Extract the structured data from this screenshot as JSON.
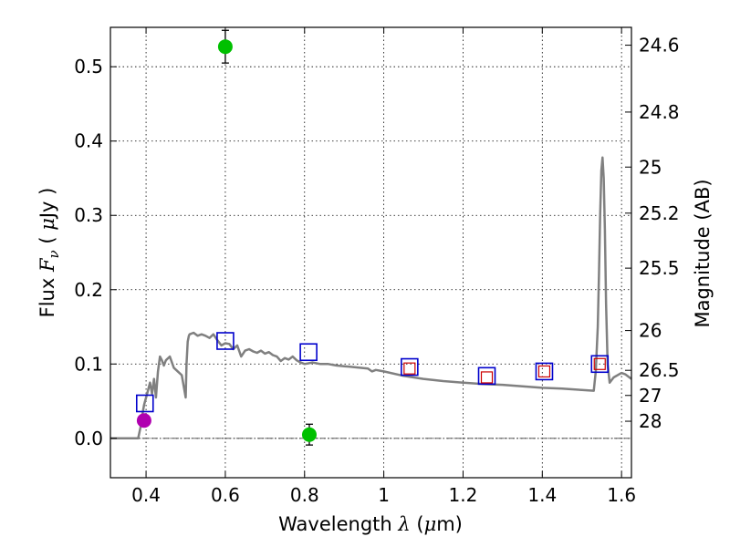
{
  "chart_data": {
    "type": "line",
    "x_axis": {
      "label_parts": [
        "Wavelength  ",
        "λ",
        " (",
        "μ",
        "m)"
      ],
      "range": [
        0.31,
        1.625
      ],
      "ticks": [
        0.4,
        0.6,
        0.8,
        1.0,
        1.2,
        1.4,
        1.6
      ],
      "tick_labels": [
        "0.4",
        "0.6",
        "0.8",
        "1",
        "1.2",
        "1.4",
        "1.6"
      ]
    },
    "y_axis_left": {
      "label_parts": [
        "Flux  ",
        "F",
        "ν",
        "  ( ",
        "μ",
        "Jy )"
      ],
      "range": [
        -0.053,
        0.553
      ],
      "ticks": [
        0.0,
        0.1,
        0.2,
        0.3,
        0.4,
        0.5
      ],
      "tick_labels": [
        "0.0",
        "0.1",
        "0.2",
        "0.3",
        "0.4",
        "0.5"
      ]
    },
    "y_axis_right": {
      "label": "Magnitude (AB)",
      "tick_labels": [
        "24.6",
        "24.8",
        "25",
        "25.2",
        "25.5",
        "26",
        "26.5",
        "27",
        "28"
      ],
      "tick_flux": [
        0.529,
        0.439,
        0.365,
        0.303,
        0.229,
        0.145,
        0.0915,
        0.0577,
        0.023
      ]
    },
    "grid": true,
    "legend": "none",
    "colors": {
      "sed_line": "#808080",
      "model_square": "#0000cc",
      "observed_square": "#cc0000",
      "green_point": "#00c000",
      "magenta_point": "#b000b0",
      "errorbar": "#000000"
    },
    "series": [
      {
        "kind": "sed-template",
        "x": [
          0.31,
          0.38,
          0.382,
          0.386,
          0.39,
          0.395,
          0.4,
          0.405,
          0.41,
          0.415,
          0.42,
          0.425,
          0.43,
          0.435,
          0.44,
          0.445,
          0.45,
          0.46,
          0.47,
          0.48,
          0.49,
          0.5,
          0.502,
          0.505,
          0.508,
          0.51,
          0.52,
          0.53,
          0.54,
          0.55,
          0.56,
          0.57,
          0.58,
          0.59,
          0.6,
          0.61,
          0.62,
          0.63,
          0.64,
          0.65,
          0.66,
          0.67,
          0.68,
          0.69,
          0.7,
          0.71,
          0.72,
          0.73,
          0.74,
          0.75,
          0.76,
          0.77,
          0.78,
          0.79,
          0.8,
          0.82,
          0.84,
          0.86,
          0.88,
          0.9,
          0.92,
          0.94,
          0.96,
          0.97,
          0.98,
          1.0,
          1.05,
          1.1,
          1.15,
          1.2,
          1.25,
          1.3,
          1.35,
          1.4,
          1.45,
          1.5,
          1.53,
          1.535,
          1.54,
          1.543,
          1.546,
          1.549,
          1.552,
          1.555,
          1.558,
          1.561,
          1.565,
          1.57,
          1.58,
          1.6,
          1.61,
          1.625
        ],
        "y": [
          0.0,
          0.0,
          0.005,
          0.015,
          0.03,
          0.045,
          0.055,
          0.065,
          0.075,
          0.06,
          0.08,
          0.055,
          0.09,
          0.11,
          0.105,
          0.098,
          0.105,
          0.11,
          0.095,
          0.09,
          0.085,
          0.055,
          0.1,
          0.13,
          0.138,
          0.14,
          0.142,
          0.138,
          0.14,
          0.138,
          0.135,
          0.14,
          0.132,
          0.125,
          0.128,
          0.127,
          0.12,
          0.125,
          0.11,
          0.118,
          0.12,
          0.117,
          0.115,
          0.118,
          0.114,
          0.116,
          0.112,
          0.11,
          0.104,
          0.108,
          0.106,
          0.11,
          0.105,
          0.102,
          0.1,
          0.102,
          0.1,
          0.1,
          0.098,
          0.097,
          0.096,
          0.095,
          0.094,
          0.09,
          0.092,
          0.09,
          0.084,
          0.08,
          0.077,
          0.075,
          0.073,
          0.072,
          0.07,
          0.068,
          0.067,
          0.065,
          0.064,
          0.09,
          0.15,
          0.22,
          0.3,
          0.36,
          0.378,
          0.35,
          0.28,
          0.18,
          0.1,
          0.075,
          0.082,
          0.088,
          0.086,
          0.08
        ]
      },
      {
        "kind": "model-photometry",
        "marker": "open-square",
        "x": [
          0.397,
          0.6,
          0.81,
          1.065,
          1.26,
          1.405,
          1.545
        ],
        "y": [
          0.047,
          0.131,
          0.116,
          0.096,
          0.084,
          0.09,
          0.1
        ]
      },
      {
        "kind": "observed-photometry",
        "marker": "open-square-small",
        "x": [
          1.065,
          1.26,
          1.405,
          1.545
        ],
        "y": [
          0.094,
          0.082,
          0.09,
          0.1
        ]
      },
      {
        "kind": "green-points",
        "marker": "filled-circle",
        "x": [
          0.6,
          0.812
        ],
        "y": [
          0.527,
          0.005
        ],
        "err": [
          0.022,
          0.014
        ]
      },
      {
        "kind": "magenta-point",
        "marker": "filled-circle",
        "x": [
          0.395
        ],
        "y": [
          0.024
        ],
        "err": [
          0.0
        ]
      }
    ]
  }
}
